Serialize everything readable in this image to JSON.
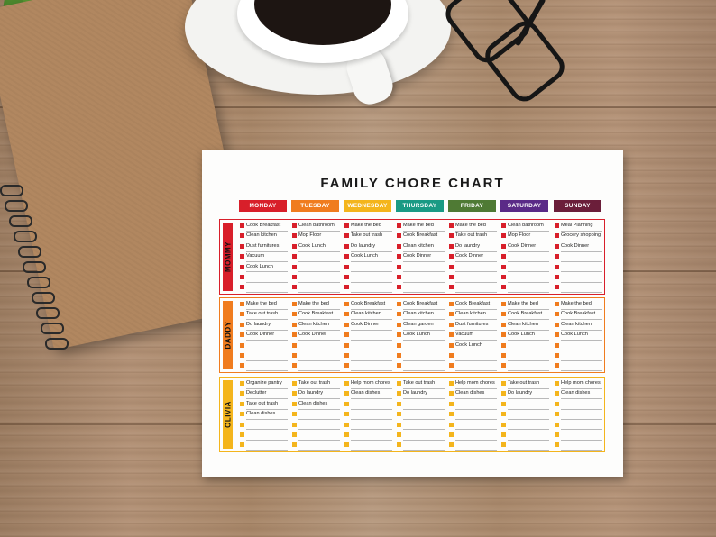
{
  "chart": {
    "title": "FAMILY CHORE CHART",
    "days": [
      {
        "label": "MONDAY",
        "color": "#d81f2a"
      },
      {
        "label": "TUESDAY",
        "color": "#f07c1e"
      },
      {
        "label": "WEDNESDAY",
        "color": "#f4b51c"
      },
      {
        "label": "THURSDAY",
        "color": "#1a9a84"
      },
      {
        "label": "FRIDAY",
        "color": "#4f7a34"
      },
      {
        "label": "SATURDAY",
        "color": "#5a2a87"
      },
      {
        "label": "SUNDAY",
        "color": "#6b1e3a"
      }
    ],
    "people": [
      {
        "name": "MOMMY",
        "color": "#d81f2a",
        "chores": [
          [
            "Cook Breakfast",
            "Clean kitchen",
            "Dust furnitures",
            "Vacuum",
            "Cook Lunch",
            "",
            ""
          ],
          [
            "Clean bathroom",
            "Mop Floor",
            "Cook Lunch",
            "",
            "",
            "",
            ""
          ],
          [
            "Make the bed",
            "Take out trash",
            "Do laundry",
            "Cook Lunch",
            "",
            "",
            ""
          ],
          [
            "Make the bed",
            "Cook Breakfast",
            "Clean kitchen",
            "Cook Dinner",
            "",
            "",
            ""
          ],
          [
            "Make the bed",
            "Take out trash",
            "Do laundry",
            "Cook Dinner",
            "",
            "",
            ""
          ],
          [
            "Clean bathroom",
            "Mop Floor",
            "Cook Dinner",
            "",
            "",
            "",
            ""
          ],
          [
            "Meal Planning",
            "Grocery shopping",
            "Cook Dinner",
            "",
            "",
            "",
            ""
          ]
        ]
      },
      {
        "name": "DADDY",
        "color": "#f07c1e",
        "chores": [
          [
            "Make the bed",
            "Take out trash",
            "Do laundry",
            "Cook Dinner",
            "",
            "",
            ""
          ],
          [
            "Make the bed",
            "Cook Breakfast",
            "Clean kitchen",
            "Cook Dinner",
            "",
            "",
            ""
          ],
          [
            "Cook Breakfast",
            "Clean kitchen",
            "Cook Dinner",
            "",
            "",
            "",
            ""
          ],
          [
            "Cook Breakfast",
            "Clean kitchen",
            "Clean garden",
            "Cook Lunch",
            "",
            "",
            ""
          ],
          [
            "Cook Breakfast",
            "Clean kitchen",
            "Dust furnitures",
            "Vacuum",
            "Cook Lunch",
            "",
            ""
          ],
          [
            "Make the bed",
            "Cook Breakfast",
            "Clean kitchen",
            "Cook Lunch",
            "",
            "",
            ""
          ],
          [
            "Make the bed",
            "Cook Breakfast",
            "Clean kitchen",
            "Cook Lunch",
            "",
            "",
            ""
          ]
        ]
      },
      {
        "name": "OLIVIA",
        "color": "#f4b51c",
        "chores": [
          [
            "Organize pantry",
            "Declutter",
            "Take out trash",
            "Clean dishes",
            "",
            "",
            ""
          ],
          [
            "Take out trash",
            "Do laundry",
            "Clean dishes",
            "",
            "",
            "",
            ""
          ],
          [
            "Help mom chores",
            "Clean dishes",
            "",
            "",
            "",
            "",
            ""
          ],
          [
            "Take out trash",
            "Do laundry",
            "",
            "",
            "",
            "",
            ""
          ],
          [
            "Help mom chores",
            "Clean dishes",
            "",
            "",
            "",
            "",
            ""
          ],
          [
            "Take out trash",
            "Do laundry",
            "",
            "",
            "",
            "",
            ""
          ],
          [
            "Help mom chores",
            "Clean dishes",
            "",
            "",
            "",
            "",
            ""
          ]
        ]
      }
    ]
  }
}
